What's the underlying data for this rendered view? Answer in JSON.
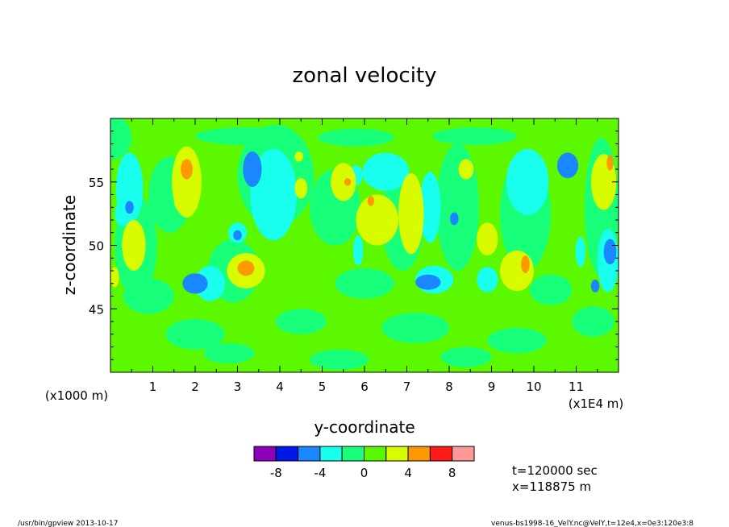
{
  "chart_data": {
    "type": "heatmap",
    "title": "zonal velocity",
    "xlabel": "y-coordinate",
    "ylabel": "z-coordinate",
    "x_scale_note": "(x1E4 m)",
    "y_scale_note": "(x1000 m)",
    "xlim": [
      0,
      12
    ],
    "ylim": [
      40,
      60
    ],
    "x_ticks": [
      "1",
      "2",
      "3",
      "4",
      "5",
      "6",
      "7",
      "8",
      "9",
      "10",
      "11"
    ],
    "y_ticks": [
      "45",
      "50",
      "55"
    ],
    "colorbar": {
      "colors": [
        "#8b00b8",
        "#0018e8",
        "#1a86ff",
        "#19ffee",
        "#18ff7a",
        "#5cf800",
        "#d8fb00",
        "#ff9900",
        "#ff1a1a",
        "#ff9898"
      ],
      "tick_labels": [
        "-8",
        "-4",
        "0",
        "4",
        "8"
      ],
      "tick_values": [
        -8,
        -4,
        0,
        4,
        8
      ]
    },
    "levels_cell": {
      "neg4": "#1a86ff",
      "neg2": "#19ffee",
      "zero": "#18ff7a",
      "pos2": "#5cf800",
      "pos4": "#d8fb00",
      "pos6": "#ff9900"
    },
    "annotations": {
      "time": "t=120000 sec",
      "position": "x=118875 m"
    }
  },
  "footer": {
    "left": "/usr/bin/gpview  2013-10-17",
    "right": "venus-bs1998-16_VelY.nc@VelY,t=12e4,x=0e3:120e3:8"
  },
  "colors": {
    "background_field": "#5cf800"
  }
}
